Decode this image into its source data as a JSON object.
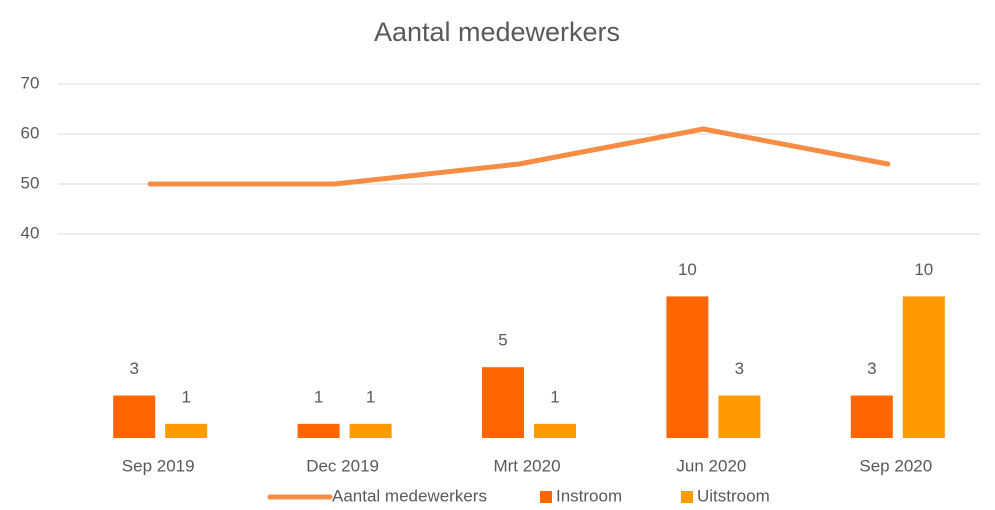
{
  "chart_data": {
    "type": "combo",
    "title": "Aantal medewerkers",
    "categories": [
      "Sep 2019",
      "Dec 2019",
      "Mrt 2020",
      "Jun 2020",
      "Sep 2020"
    ],
    "series": [
      {
        "name": "Aantal medewerkers",
        "type": "line",
        "color": "#f78d44",
        "values": [
          50,
          50,
          54,
          61,
          54
        ]
      },
      {
        "name": "Instroom",
        "type": "bar",
        "axis": "y2",
        "color": "#ff6600",
        "values": [
          3,
          1,
          5,
          10,
          3
        ]
      },
      {
        "name": "Uitstroom",
        "type": "bar",
        "axis": "y2",
        "color": "#ff9900",
        "values": [
          1,
          1,
          1,
          3,
          10
        ]
      }
    ],
    "ylim": [
      0,
      70
    ],
    "yticks": [
      40,
      50,
      60,
      70
    ],
    "y2lim": [
      0,
      25
    ],
    "grid": true,
    "legend": "bottom"
  }
}
